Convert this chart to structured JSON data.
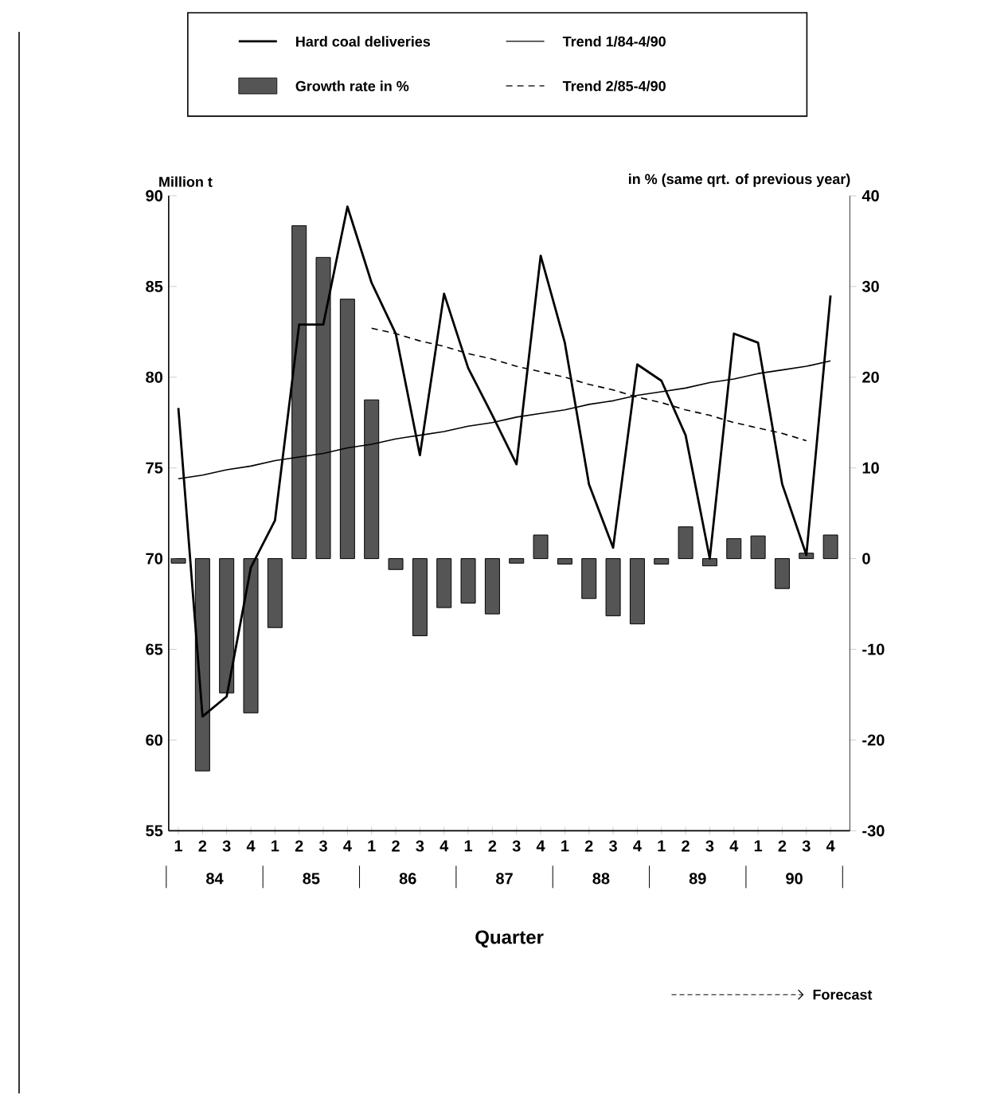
{
  "chart_data": {
    "type": "line",
    "categories": [
      "1",
      "2",
      "3",
      "4",
      "1",
      "2",
      "3",
      "4",
      "1",
      "2",
      "3",
      "4",
      "1",
      "2",
      "3",
      "4",
      "1",
      "2",
      "3",
      "4",
      "1",
      "2",
      "3",
      "4",
      "1",
      "2",
      "3",
      "4"
    ],
    "series": [
      {
        "name": "Hard coal deliveries",
        "color": "#000000",
        "values": [
          78.3,
          61.3,
          62.4,
          69.5,
          72.1,
          82.9,
          82.9,
          89.4,
          85.2,
          82.4,
          75.7,
          84.6,
          80.5,
          77.9,
          75.2,
          86.7,
          81.9,
          74.1,
          70.6,
          80.7,
          79.8,
          76.8,
          70.0,
          82.4,
          81.9,
          74.1,
          70.2,
          84.5
        ]
      },
      {
        "name": "Growth rate in %",
        "type": "bar",
        "axis": "y2",
        "color": "#555555",
        "values": [
          -0.5,
          -23.4,
          -14.8,
          -17.0,
          -7.6,
          36.7,
          33.2,
          28.6,
          17.5,
          -1.2,
          -8.5,
          -5.4,
          -4.9,
          -6.1,
          -0.5,
          2.6,
          -0.6,
          -4.4,
          -6.3,
          -7.2,
          -0.6,
          3.5,
          -0.8,
          2.2,
          2.5,
          -3.3,
          0.6,
          2.6
        ]
      },
      {
        "name": "Trend 1/84-4/90",
        "color": "#000000",
        "values": [
          74.4,
          74.6,
          74.9,
          75.1,
          75.4,
          75.6,
          75.8,
          76.1,
          76.3,
          76.6,
          76.8,
          77.0,
          77.3,
          77.5,
          77.8,
          78.0,
          78.2,
          78.5,
          78.7,
          79.0,
          79.2,
          79.4,
          79.7,
          79.9,
          80.2,
          80.4,
          80.6,
          80.9
        ]
      },
      {
        "name": "Trend 2/85-4/90",
        "color": "#000000",
        "line_style": "dashed",
        "values": [
          null,
          null,
          null,
          null,
          null,
          null,
          null,
          null,
          82.7,
          82.4,
          82.0,
          81.7,
          81.3,
          81.0,
          80.6,
          80.3,
          80.0,
          79.6,
          79.3,
          78.9,
          78.6,
          78.2,
          77.9,
          77.5,
          77.2,
          76.9,
          76.5,
          null
        ]
      }
    ],
    "ylabel": "Million t",
    "y2label": "in % (same qrt. of previous year)",
    "xlabel": "Quarter",
    "ylim": [
      55,
      90
    ],
    "yticks": [
      55,
      60,
      65,
      70,
      75,
      80,
      85,
      90
    ],
    "y2lim": [
      -30,
      40
    ],
    "y2ticks": [
      -30,
      -20,
      -10,
      0,
      10,
      20,
      30,
      40
    ],
    "legend": "top",
    "grid": false,
    "marker": "none",
    "annotations": [
      "84",
      "85",
      "86",
      "87",
      "88",
      "89",
      "90",
      "Forecast"
    ]
  }
}
